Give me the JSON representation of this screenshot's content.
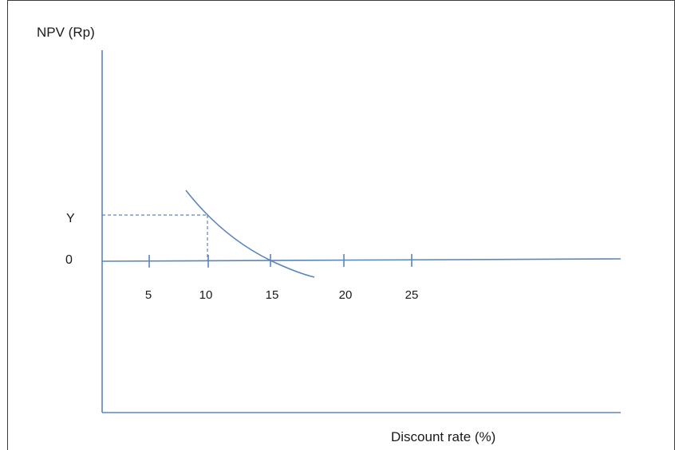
{
  "chart_data": {
    "type": "line",
    "ylabel": "NPV (Rp)",
    "xlabel": "Discount rate (%)",
    "x_ticks": [
      "5",
      "10",
      "15",
      "20",
      "25"
    ],
    "y_labels": {
      "zero": "0",
      "y_value": "Y"
    },
    "xlim": [
      0,
      38
    ],
    "series": [
      {
        "x": [
          6.6,
          8,
          10,
          12,
          14,
          15,
          16,
          17.5
        ],
        "y": [
          1.55,
          1.2,
          0.95,
          0.6,
          0.22,
          0,
          -0.18,
          -0.35
        ]
      }
    ],
    "reference_point": {
      "x": 10,
      "y": 1
    },
    "colors": {
      "line": "#5b86b8",
      "text": "#1a1a1a",
      "frame": "#3b3b3b"
    }
  }
}
